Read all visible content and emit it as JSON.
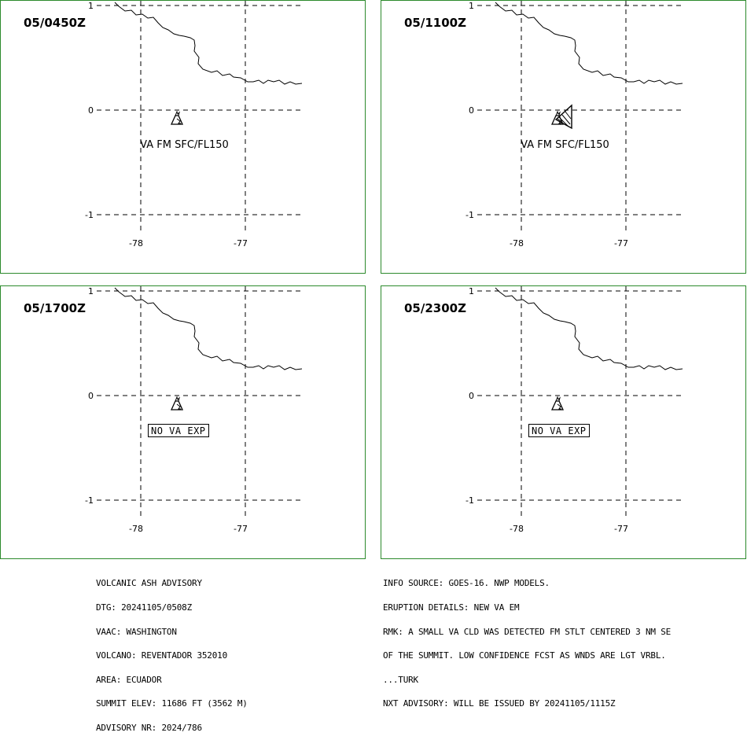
{
  "panels": [
    {
      "time": "05/0450Z",
      "label": "VA FM SFC/FL150",
      "no_va_exp": "",
      "ash_area": false
    },
    {
      "time": "05/1100Z",
      "label": "VA FM SFC/FL150",
      "no_va_exp": "",
      "ash_area": true
    },
    {
      "time": "05/1700Z",
      "label": "",
      "no_va_exp": "NO VA EXP",
      "ash_area": false
    },
    {
      "time": "05/2300Z",
      "label": "",
      "no_va_exp": "NO VA EXP",
      "ash_area": false
    }
  ],
  "axes": {
    "lat_ticks": [
      "1",
      "0",
      "-1"
    ],
    "lon_ticks": [
      "-78",
      "-77"
    ]
  },
  "colors": {
    "panel_border": "#2c8a2c",
    "lines": "#000000"
  },
  "advisory_left": {
    "line1": "VOLCANIC ASH ADVISORY",
    "line2": "DTG: 20241105/0508Z",
    "line3": "VAAC: WASHINGTON",
    "line4": "VOLCANO: REVENTADOR 352010",
    "line5": "AREA: ECUADOR",
    "line6": "SUMMIT ELEV: 11686 FT (3562 M)",
    "line7": "ADVISORY NR: 2024/786"
  },
  "advisory_right": {
    "line1": "INFO SOURCE: GOES-16. NWP MODELS.",
    "line2": "ERUPTION DETAILS: NEW VA EM",
    "line3": "RMK: A SMALL VA CLD WAS DETECTED FM STLT CENTERED 3 NM SE",
    "line4": "OF THE SUMMIT. LOW CONFIDENCE FCST AS WNDS ARE LGT VRBL.",
    "line5": "...TURK",
    "line6": "NXT ADVISORY: WILL BE ISSUED BY 20241105/1115Z"
  }
}
